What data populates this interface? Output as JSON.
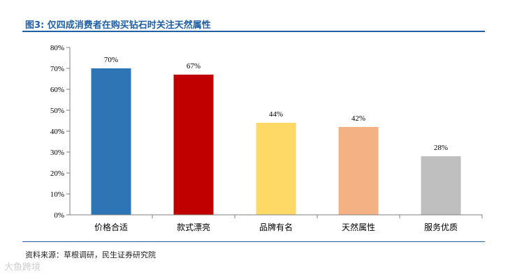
{
  "figure": {
    "title": "图3: 仅四成消费者在购买钻石时关注天然属性",
    "source": "资料来源：草根调研，民生证券研究院",
    "watermark": "大鱼跨境"
  },
  "chart_data": {
    "type": "bar",
    "categories": [
      "价格合适",
      "款式漂亮",
      "品牌有名",
      "天然属性",
      "服务优质"
    ],
    "values": [
      70,
      67,
      44,
      42,
      28
    ],
    "value_labels": [
      "70%",
      "67%",
      "44%",
      "42%",
      "28%"
    ],
    "colors": [
      "#2e75b6",
      "#c00000",
      "#ffd966",
      "#f4b183",
      "#bfbfbf"
    ],
    "yticks": [
      "0%",
      "10%",
      "20%",
      "30%",
      "40%",
      "50%",
      "60%",
      "70%",
      "80%"
    ],
    "ylim": [
      0,
      80
    ],
    "grid": false,
    "legend": "none"
  }
}
